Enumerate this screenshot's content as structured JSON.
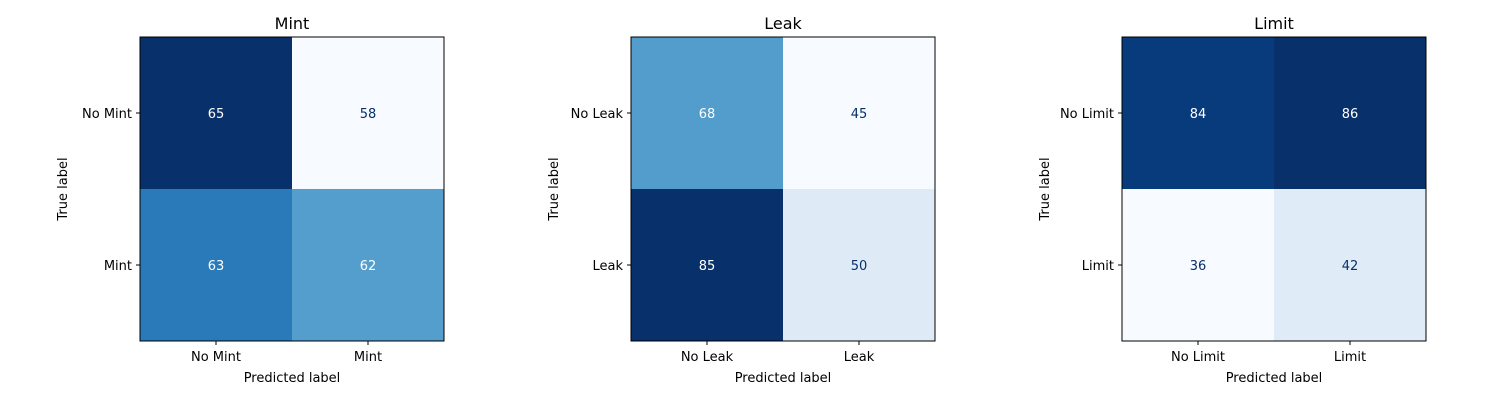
{
  "chart_data": [
    {
      "type": "heatmap",
      "title": "Mint",
      "xlabel": "Predicted label",
      "ylabel": "True label",
      "x_categories": [
        "No Mint",
        "Mint"
      ],
      "y_categories": [
        "No Mint",
        "Mint"
      ],
      "matrix": [
        [
          65,
          58
        ],
        [
          63,
          62
        ]
      ],
      "colormap": "Blues"
    },
    {
      "type": "heatmap",
      "title": "Leak",
      "xlabel": "Predicted label",
      "ylabel": "True label",
      "x_categories": [
        "No Leak",
        "Leak"
      ],
      "y_categories": [
        "No Leak",
        "Leak"
      ],
      "matrix": [
        [
          68,
          45
        ],
        [
          85,
          50
        ]
      ],
      "colormap": "Blues"
    },
    {
      "type": "heatmap",
      "title": "Limit",
      "xlabel": "Predicted label",
      "ylabel": "True label",
      "x_categories": [
        "No Limit",
        "Limit"
      ],
      "y_categories": [
        "No Limit",
        "Limit"
      ],
      "matrix": [
        [
          84,
          86
        ],
        [
          36,
          42
        ]
      ],
      "colormap": "Blues"
    }
  ],
  "colors": {
    "text_on_dark": "#ffffff",
    "text_on_light": "#08306b",
    "frame": "#000000"
  }
}
